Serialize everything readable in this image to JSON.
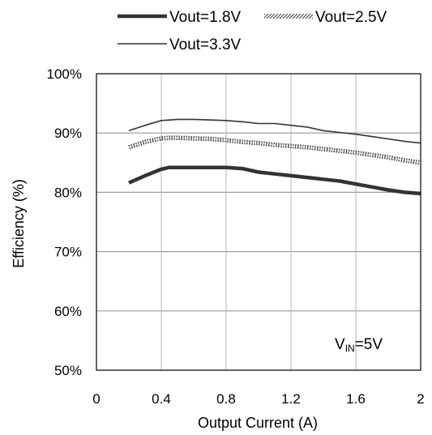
{
  "chart_data": {
    "type": "line",
    "title": "",
    "xlabel": "Output Current (A)",
    "ylabel": "Efficiency (%)",
    "xlim": [
      0,
      2
    ],
    "ylim": [
      50,
      100
    ],
    "x_ticks": [
      "0",
      "0.4",
      "0.8",
      "1.2",
      "1.6",
      "2"
    ],
    "y_ticks": [
      "50%",
      "60%",
      "70%",
      "80%",
      "90%",
      "100%"
    ],
    "grid": true,
    "legend_position": "top",
    "annotation": {
      "main": "V",
      "subscript": "IN",
      "suffix": "=5V"
    },
    "series": [
      {
        "name": "Vout=1.8V",
        "style": "thick",
        "color": "#333333",
        "x": [
          0.2,
          0.3,
          0.4,
          0.45,
          0.5,
          0.6,
          0.7,
          0.8,
          0.9,
          1.0,
          1.1,
          1.2,
          1.3,
          1.4,
          1.5,
          1.6,
          1.7,
          1.8,
          1.9,
          2.0
        ],
        "y": [
          81.6,
          82.8,
          83.9,
          84.2,
          84.2,
          84.2,
          84.2,
          84.2,
          84.0,
          83.4,
          83.1,
          82.8,
          82.5,
          82.2,
          81.9,
          81.4,
          80.9,
          80.4,
          80.0,
          79.8
        ]
      },
      {
        "name": "Vout=2.5V",
        "style": "hatched",
        "color": "#555555",
        "x": [
          0.2,
          0.3,
          0.4,
          0.45,
          0.5,
          0.6,
          0.7,
          0.8,
          0.9,
          1.0,
          1.1,
          1.2,
          1.3,
          1.4,
          1.5,
          1.6,
          1.7,
          1.8,
          1.9,
          2.0
        ],
        "y": [
          87.6,
          88.5,
          89.1,
          89.2,
          89.2,
          89.1,
          89.0,
          88.8,
          88.5,
          88.3,
          88.0,
          87.8,
          87.6,
          87.3,
          87.0,
          86.7,
          86.3,
          85.9,
          85.4,
          85.0
        ]
      },
      {
        "name": "Vout=3.3V",
        "style": "thin",
        "color": "#333333",
        "x": [
          0.2,
          0.3,
          0.4,
          0.5,
          0.6,
          0.7,
          0.8,
          0.9,
          1.0,
          1.1,
          1.2,
          1.3,
          1.4,
          1.5,
          1.6,
          1.7,
          1.8,
          1.9,
          2.0
        ],
        "y": [
          90.4,
          91.3,
          92.1,
          92.3,
          92.3,
          92.2,
          92.1,
          91.9,
          91.6,
          91.6,
          91.3,
          91.0,
          90.4,
          90.1,
          89.8,
          89.4,
          89.0,
          88.6,
          88.3
        ]
      }
    ]
  }
}
